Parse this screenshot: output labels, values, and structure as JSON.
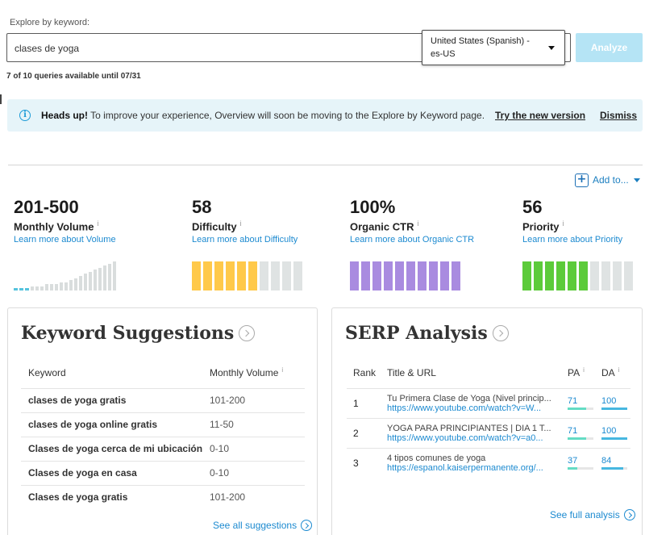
{
  "explore": {
    "label": "Explore by keyword:",
    "query": "clases de yoga",
    "locale": "United States (Spanish) - es-US",
    "analyze_label": "Analyze",
    "quota": "7 of 10 queries available until 07/31"
  },
  "banner": {
    "heading": "Heads up!",
    "text": " To improve your experience, Overview will soon be moving to the Explore by Keyword page.",
    "try_label": "Try the new version",
    "dismiss_label": "Dismiss"
  },
  "add_to_label": "Add to...",
  "metrics": [
    {
      "value": "201-500",
      "label": "Monthly Volume",
      "link": "Learn more about Volume"
    },
    {
      "value": "58",
      "label": "Difficulty",
      "link": "Learn more about Difficulty"
    },
    {
      "value": "100%",
      "label": "Organic CTR",
      "link": "Learn more about Organic CTR"
    },
    {
      "value": "56",
      "label": "Priority",
      "link": "Learn more about Priority"
    }
  ],
  "meters": {
    "difficulty": {
      "filled": 6,
      "total": 10,
      "color": "#ffc94a"
    },
    "ctr": {
      "filled": 10,
      "total": 10,
      "color": "#a98be0"
    },
    "priority": {
      "filled": 6,
      "total": 10,
      "color": "#5ccb3a"
    },
    "empty_color": "#dfe3e3"
  },
  "volume_chart": {
    "levels": [
      1,
      1,
      1,
      2,
      2,
      2,
      3,
      3,
      3,
      4,
      4,
      5,
      6,
      7,
      8,
      9,
      10,
      11,
      12,
      13,
      14
    ],
    "highlighted": 3,
    "highlight_color": "#55c3dd",
    "base_color": "#d9dddd"
  },
  "keyword_suggestions": {
    "title": "Keyword Suggestions",
    "col_keyword": "Keyword",
    "col_volume": "Monthly Volume",
    "rows": [
      {
        "keyword": "clases de yoga gratis",
        "volume": "101-200"
      },
      {
        "keyword": "clases de yoga online gratis",
        "volume": "11-50"
      },
      {
        "keyword": "Clases de yoga cerca de mi ubicación",
        "volume": "0-10"
      },
      {
        "keyword": "Clases de yoga en casa",
        "volume": "0-10"
      },
      {
        "keyword": "Clases de yoga gratis",
        "volume": "101-200"
      }
    ],
    "see_all": "See all suggestions"
  },
  "serp": {
    "title": "SERP Analysis",
    "col_rank": "Rank",
    "col_title": "Title & URL",
    "col_pa": "PA",
    "col_da": "DA",
    "rows": [
      {
        "rank": "1",
        "title": "Tu Primera Clase de Yoga (Nivel princip...",
        "url": "https://www.youtube.com/watch?v=W...",
        "pa": "71",
        "da": "100",
        "pa_frac": 0.71,
        "da_frac": 1.0
      },
      {
        "rank": "2",
        "title": "YOGA PARA PRINCIPIANTES | DIA 1 T...",
        "url": "https://www.youtube.com/watch?v=a0...",
        "pa": "71",
        "da": "100",
        "pa_frac": 0.71,
        "da_frac": 1.0
      },
      {
        "rank": "3",
        "title": "4 tipos comunes de yoga",
        "url": "https://espanol.kaiserpermanente.org/...",
        "pa": "37",
        "da": "84",
        "pa_frac": 0.37,
        "da_frac": 0.84
      }
    ],
    "pa_color": "#64dcc4",
    "da_color": "#47b7e0",
    "see_full": "See full analysis"
  },
  "info_glyph": "i"
}
